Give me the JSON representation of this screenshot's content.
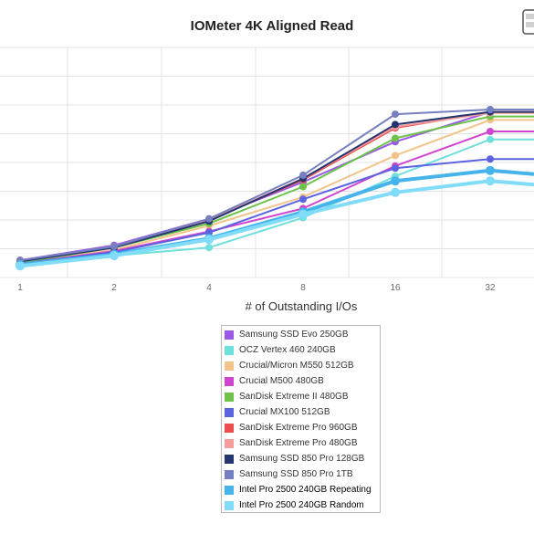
{
  "chart_data": {
    "type": "line",
    "title": "IOMeter 4K Aligned Read",
    "xlabel": "# of Outstanding I/Os",
    "ylabel": "",
    "x": [
      1,
      2,
      4,
      8,
      16,
      32
    ],
    "x_tick_labels": [
      "1",
      "2",
      "4",
      "8",
      "16",
      "32"
    ],
    "x_scale": "log2",
    "ylim": [
      0,
      1
    ],
    "y_tick_labels": [],
    "grid": true,
    "legend_position": "bottom-center",
    "series": [
      {
        "name": "Samsung SSD Evo 250GB",
        "color": "#9b59e6",
        "values": [
          0.075,
          0.14,
          0.255,
          0.415,
          0.59,
          0.72
        ]
      },
      {
        "name": "OCZ Vertex 460 240GB",
        "color": "#6fe0dc",
        "values": [
          0.05,
          0.095,
          0.13,
          0.26,
          0.44,
          0.6
        ]
      },
      {
        "name": "Crucial/Micron M550 512GB",
        "color": "#f2c38a",
        "values": [
          0.06,
          0.12,
          0.225,
          0.35,
          0.53,
          0.685
        ]
      },
      {
        "name": "Crucial M500 480GB",
        "color": "#cf45cf",
        "values": [
          0.06,
          0.115,
          0.2,
          0.3,
          0.485,
          0.635
        ]
      },
      {
        "name": "SanDisk Extreme II 480GB",
        "color": "#6cc24a",
        "values": [
          0.065,
          0.13,
          0.235,
          0.395,
          0.605,
          0.7
        ]
      },
      {
        "name": "Crucial MX100 512GB",
        "color": "#5a63e0",
        "values": [
          0.06,
          0.11,
          0.195,
          0.34,
          0.475,
          0.515
        ]
      },
      {
        "name": "SanDisk Extreme Pro 960GB",
        "color": "#ec4d4d",
        "values": [
          0.07,
          0.135,
          0.25,
          0.425,
          0.65,
          0.72
        ]
      },
      {
        "name": "SanDisk Extreme Pro 480GB",
        "color": "#f59c9c",
        "values": [
          0.07,
          0.135,
          0.25,
          0.43,
          0.655,
          0.715
        ]
      },
      {
        "name": "Samsung SSD 850 Pro 128GB",
        "color": "#253570",
        "values": [
          0.07,
          0.13,
          0.245,
          0.43,
          0.665,
          0.72
        ]
      },
      {
        "name": "Samsung SSD 850 Pro 1TB",
        "color": "#7680c0",
        "values": [
          0.075,
          0.135,
          0.255,
          0.445,
          0.71,
          0.73
        ]
      },
      {
        "name": "Intel Pro 2500 240GB Repeating",
        "color": "#46b4ea",
        "values": [
          0.055,
          0.1,
          0.17,
          0.285,
          0.42,
          0.465
        ]
      },
      {
        "name": "Intel Pro 2500 240GB Random",
        "color": "#80dcf8",
        "values": [
          0.05,
          0.095,
          0.165,
          0.275,
          0.37,
          0.42
        ]
      }
    ]
  }
}
